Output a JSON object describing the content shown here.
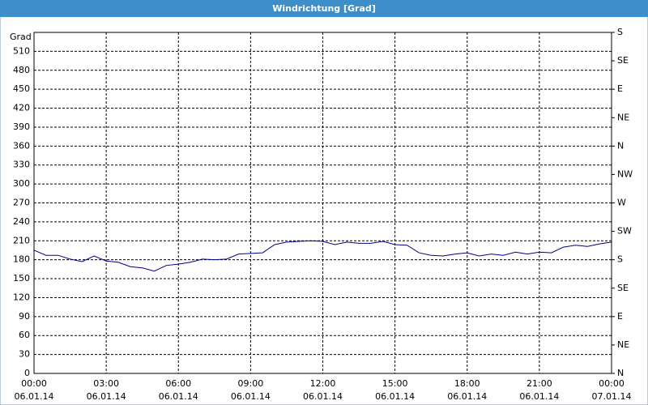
{
  "chart_data": {
    "type": "line",
    "title": "Windrichtung [Grad]",
    "ylabel": "Grad",
    "x": [
      0,
      0.5,
      1,
      1.5,
      2,
      2.5,
      3,
      3.5,
      4,
      4.5,
      5,
      5.5,
      6,
      6.5,
      7,
      7.5,
      8,
      8.5,
      9,
      9.5,
      10,
      10.5,
      11,
      11.5,
      12,
      12.5,
      13,
      13.5,
      14,
      14.5,
      15,
      15.5,
      16,
      16.5,
      17,
      17.5,
      18,
      18.5,
      19,
      19.5,
      20,
      20.5,
      21,
      21.5,
      22,
      22.5,
      23,
      23.5,
      24
    ],
    "series": [
      {
        "name": "Windrichtung",
        "color": "#00008b",
        "values": [
          195,
          187,
          187,
          181,
          177,
          186,
          178,
          176,
          169,
          167,
          162,
          171,
          173,
          176,
          181,
          180,
          181,
          189,
          190,
          191,
          204,
          208,
          209,
          210,
          209,
          204,
          208,
          206,
          206,
          209,
          204,
          203,
          191,
          187,
          186,
          189,
          191,
          186,
          189,
          187,
          192,
          189,
          192,
          191,
          200,
          203,
          201,
          205,
          208
        ]
      }
    ],
    "xlim": [
      0,
      24
    ],
    "xticks": [
      {
        "value": 0,
        "label": "00:00"
      },
      {
        "value": 3,
        "label": "03:00"
      },
      {
        "value": 6,
        "label": "06:00"
      },
      {
        "value": 9,
        "label": "09:00"
      },
      {
        "value": 12,
        "label": "12:00"
      },
      {
        "value": 15,
        "label": "15:00"
      },
      {
        "value": 18,
        "label": "18:00"
      },
      {
        "value": 21,
        "label": "21:00"
      },
      {
        "value": 24,
        "label": "00:00"
      }
    ],
    "xtick_dates": [
      "06.01.14",
      "06.01.14",
      "06.01.14",
      "06.01.14",
      "06.01.14",
      "06.01.14",
      "06.01.14",
      "06.01.14",
      "07.01.14"
    ],
    "ylim": [
      0,
      540
    ],
    "yticks": [
      0,
      30,
      60,
      90,
      120,
      150,
      180,
      210,
      240,
      270,
      300,
      330,
      360,
      390,
      420,
      450,
      480,
      510
    ],
    "y2lim": [
      0,
      540
    ],
    "y2ticks": [
      {
        "value": 0,
        "label": "N"
      },
      {
        "value": 45,
        "label": "NE"
      },
      {
        "value": 90,
        "label": "E"
      },
      {
        "value": 135,
        "label": "SE"
      },
      {
        "value": 180,
        "label": "S"
      },
      {
        "value": 225,
        "label": "SW"
      },
      {
        "value": 270,
        "label": "W"
      },
      {
        "value": 315,
        "label": "NW"
      },
      {
        "value": 360,
        "label": "N"
      },
      {
        "value": 405,
        "label": "NE"
      },
      {
        "value": 450,
        "label": "E"
      },
      {
        "value": 495,
        "label": "SE"
      },
      {
        "value": 540,
        "label": "S"
      }
    ],
    "grid": true
  }
}
